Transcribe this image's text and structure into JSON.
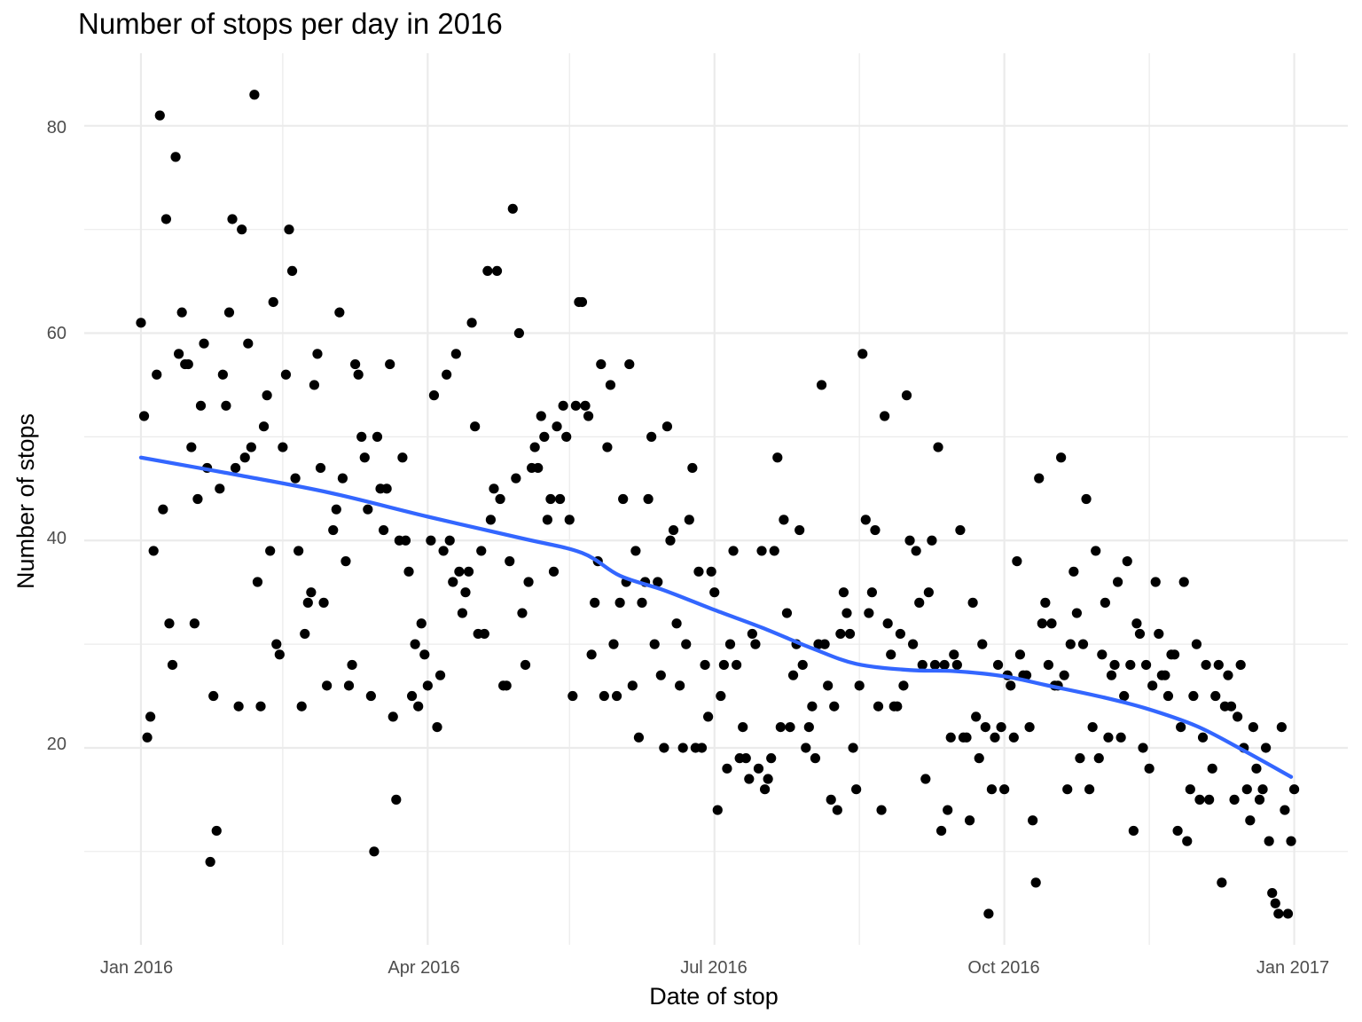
{
  "chart_data": {
    "type": "scatter",
    "title": "Number of stops per day in 2016",
    "xlabel": "Date of stop",
    "ylabel": "Number of stops",
    "x_ticks": [
      "Jan 2016",
      "Apr 2016",
      "Jul 2016",
      "Oct 2016",
      "Jan 2017"
    ],
    "y_ticks": [
      "20",
      "40",
      "60",
      "80"
    ],
    "x_range": [
      "2015-12-14",
      "2017-01-18"
    ],
    "ylim": [
      1,
      87
    ],
    "grid": true,
    "colors": {
      "points": "#000000",
      "smooth": "#3366FF",
      "grid": "#EBEBEB"
    },
    "points": [
      [
        "2016-01-01",
        61
      ],
      [
        "2016-01-02",
        52
      ],
      [
        "2016-01-03",
        21
      ],
      [
        "2016-01-04",
        23
      ],
      [
        "2016-01-05",
        39
      ],
      [
        "2016-01-06",
        56
      ],
      [
        "2016-01-07",
        81
      ],
      [
        "2016-01-08",
        43
      ],
      [
        "2016-01-09",
        71
      ],
      [
        "2016-01-10",
        32
      ],
      [
        "2016-01-11",
        28
      ],
      [
        "2016-01-12",
        77
      ],
      [
        "2016-01-13",
        58
      ],
      [
        "2016-01-14",
        62
      ],
      [
        "2016-01-15",
        57
      ],
      [
        "2016-01-16",
        57
      ],
      [
        "2016-01-17",
        49
      ],
      [
        "2016-01-18",
        32
      ],
      [
        "2016-01-19",
        44
      ],
      [
        "2016-01-20",
        53
      ],
      [
        "2016-01-21",
        59
      ],
      [
        "2016-01-22",
        47
      ],
      [
        "2016-01-23",
        9
      ],
      [
        "2016-01-24",
        25
      ],
      [
        "2016-01-25",
        12
      ],
      [
        "2016-01-26",
        45
      ],
      [
        "2016-01-27",
        56
      ],
      [
        "2016-01-28",
        53
      ],
      [
        "2016-01-29",
        62
      ],
      [
        "2016-01-30",
        71
      ],
      [
        "2016-01-31",
        47
      ],
      [
        "2016-02-01",
        24
      ],
      [
        "2016-02-02",
        70
      ],
      [
        "2016-02-03",
        48
      ],
      [
        "2016-02-04",
        59
      ],
      [
        "2016-02-05",
        49
      ],
      [
        "2016-02-06",
        83
      ],
      [
        "2016-02-07",
        36
      ],
      [
        "2016-02-08",
        24
      ],
      [
        "2016-02-09",
        51
      ],
      [
        "2016-02-10",
        54
      ],
      [
        "2016-02-11",
        39
      ],
      [
        "2016-02-12",
        63
      ],
      [
        "2016-02-13",
        30
      ],
      [
        "2016-02-14",
        29
      ],
      [
        "2016-02-15",
        49
      ],
      [
        "2016-02-16",
        56
      ],
      [
        "2016-02-17",
        70
      ],
      [
        "2016-02-18",
        66
      ],
      [
        "2016-02-19",
        46
      ],
      [
        "2016-02-20",
        39
      ],
      [
        "2016-02-21",
        24
      ],
      [
        "2016-02-22",
        31
      ],
      [
        "2016-02-23",
        34
      ],
      [
        "2016-02-24",
        35
      ],
      [
        "2016-02-25",
        55
      ],
      [
        "2016-02-26",
        58
      ],
      [
        "2016-02-27",
        47
      ],
      [
        "2016-02-28",
        34
      ],
      [
        "2016-02-29",
        26
      ],
      [
        "2016-03-02",
        41
      ],
      [
        "2016-03-03",
        43
      ],
      [
        "2016-03-04",
        62
      ],
      [
        "2016-03-05",
        46
      ],
      [
        "2016-03-06",
        38
      ],
      [
        "2016-03-07",
        26
      ],
      [
        "2016-03-08",
        28
      ],
      [
        "2016-03-09",
        57
      ],
      [
        "2016-03-10",
        56
      ],
      [
        "2016-03-11",
        50
      ],
      [
        "2016-03-12",
        48
      ],
      [
        "2016-03-13",
        43
      ],
      [
        "2016-03-14",
        25
      ],
      [
        "2016-03-15",
        10
      ],
      [
        "2016-03-16",
        50
      ],
      [
        "2016-03-17",
        45
      ],
      [
        "2016-03-18",
        41
      ],
      [
        "2016-03-19",
        45
      ],
      [
        "2016-03-20",
        57
      ],
      [
        "2016-03-21",
        23
      ],
      [
        "2016-03-22",
        15
      ],
      [
        "2016-03-23",
        40
      ],
      [
        "2016-03-24",
        48
      ],
      [
        "2016-03-25",
        40
      ],
      [
        "2016-03-26",
        37
      ],
      [
        "2016-03-27",
        25
      ],
      [
        "2016-03-28",
        30
      ],
      [
        "2016-03-29",
        24
      ],
      [
        "2016-03-30",
        32
      ],
      [
        "2016-03-31",
        29
      ],
      [
        "2016-04-01",
        26
      ],
      [
        "2016-04-02",
        40
      ],
      [
        "2016-04-03",
        54
      ],
      [
        "2016-04-04",
        22
      ],
      [
        "2016-04-05",
        27
      ],
      [
        "2016-04-06",
        39
      ],
      [
        "2016-04-07",
        56
      ],
      [
        "2016-04-08",
        40
      ],
      [
        "2016-04-09",
        36
      ],
      [
        "2016-04-10",
        58
      ],
      [
        "2016-04-11",
        37
      ],
      [
        "2016-04-12",
        33
      ],
      [
        "2016-04-13",
        35
      ],
      [
        "2016-04-14",
        37
      ],
      [
        "2016-04-15",
        61
      ],
      [
        "2016-04-16",
        51
      ],
      [
        "2016-04-17",
        31
      ],
      [
        "2016-04-18",
        39
      ],
      [
        "2016-04-19",
        31
      ],
      [
        "2016-04-20",
        66
      ],
      [
        "2016-04-21",
        42
      ],
      [
        "2016-04-22",
        45
      ],
      [
        "2016-04-23",
        66
      ],
      [
        "2016-04-24",
        44
      ],
      [
        "2016-04-25",
        26
      ],
      [
        "2016-04-26",
        26
      ],
      [
        "2016-04-27",
        38
      ],
      [
        "2016-04-28",
        72
      ],
      [
        "2016-04-29",
        46
      ],
      [
        "2016-04-30",
        60
      ],
      [
        "2016-05-01",
        33
      ],
      [
        "2016-05-02",
        28
      ],
      [
        "2016-05-03",
        36
      ],
      [
        "2016-05-04",
        47
      ],
      [
        "2016-05-05",
        49
      ],
      [
        "2016-05-06",
        47
      ],
      [
        "2016-05-07",
        52
      ],
      [
        "2016-05-08",
        50
      ],
      [
        "2016-05-09",
        42
      ],
      [
        "2016-05-10",
        44
      ],
      [
        "2016-05-11",
        37
      ],
      [
        "2016-05-12",
        51
      ],
      [
        "2016-05-13",
        44
      ],
      [
        "2016-05-14",
        53
      ],
      [
        "2016-05-15",
        50
      ],
      [
        "2016-05-16",
        42
      ],
      [
        "2016-05-17",
        25
      ],
      [
        "2016-05-18",
        53
      ],
      [
        "2016-05-19",
        63
      ],
      [
        "2016-05-20",
        63
      ],
      [
        "2016-05-21",
        53
      ],
      [
        "2016-05-22",
        52
      ],
      [
        "2016-05-23",
        29
      ],
      [
        "2016-05-24",
        34
      ],
      [
        "2016-05-25",
        38
      ],
      [
        "2016-05-26",
        57
      ],
      [
        "2016-05-27",
        25
      ],
      [
        "2016-05-28",
        49
      ],
      [
        "2016-05-29",
        55
      ],
      [
        "2016-05-30",
        30
      ],
      [
        "2016-05-31",
        25
      ],
      [
        "2016-06-01",
        34
      ],
      [
        "2016-06-02",
        44
      ],
      [
        "2016-06-03",
        36
      ],
      [
        "2016-06-04",
        57
      ],
      [
        "2016-06-05",
        26
      ],
      [
        "2016-06-06",
        39
      ],
      [
        "2016-06-07",
        21
      ],
      [
        "2016-06-08",
        34
      ],
      [
        "2016-06-09",
        36
      ],
      [
        "2016-06-10",
        44
      ],
      [
        "2016-06-11",
        50
      ],
      [
        "2016-06-12",
        30
      ],
      [
        "2016-06-13",
        36
      ],
      [
        "2016-06-14",
        27
      ],
      [
        "2016-06-15",
        20
      ],
      [
        "2016-06-16",
        51
      ],
      [
        "2016-06-17",
        40
      ],
      [
        "2016-06-18",
        41
      ],
      [
        "2016-06-19",
        32
      ],
      [
        "2016-06-20",
        26
      ],
      [
        "2016-06-21",
        20
      ],
      [
        "2016-06-22",
        30
      ],
      [
        "2016-06-23",
        42
      ],
      [
        "2016-06-24",
        47
      ],
      [
        "2016-06-25",
        20
      ],
      [
        "2016-06-26",
        37
      ],
      [
        "2016-06-27",
        20
      ],
      [
        "2016-06-28",
        28
      ],
      [
        "2016-06-29",
        23
      ],
      [
        "2016-06-30",
        37
      ],
      [
        "2016-07-01",
        35
      ],
      [
        "2016-07-02",
        14
      ],
      [
        "2016-07-03",
        25
      ],
      [
        "2016-07-04",
        28
      ],
      [
        "2016-07-05",
        18
      ],
      [
        "2016-07-06",
        30
      ],
      [
        "2016-07-07",
        39
      ],
      [
        "2016-07-08",
        28
      ],
      [
        "2016-07-09",
        19
      ],
      [
        "2016-07-10",
        22
      ],
      [
        "2016-07-11",
        19
      ],
      [
        "2016-07-12",
        17
      ],
      [
        "2016-07-13",
        31
      ],
      [
        "2016-07-14",
        30
      ],
      [
        "2016-07-15",
        18
      ],
      [
        "2016-07-16",
        39
      ],
      [
        "2016-07-17",
        16
      ],
      [
        "2016-07-18",
        17
      ],
      [
        "2016-07-19",
        19
      ],
      [
        "2016-07-20",
        39
      ],
      [
        "2016-07-21",
        48
      ],
      [
        "2016-07-22",
        22
      ],
      [
        "2016-07-23",
        42
      ],
      [
        "2016-07-24",
        33
      ],
      [
        "2016-07-25",
        22
      ],
      [
        "2016-07-26",
        27
      ],
      [
        "2016-07-27",
        30
      ],
      [
        "2016-07-28",
        41
      ],
      [
        "2016-07-29",
        28
      ],
      [
        "2016-07-30",
        20
      ],
      [
        "2016-07-31",
        22
      ],
      [
        "2016-08-01",
        24
      ],
      [
        "2016-08-02",
        19
      ],
      [
        "2016-08-03",
        30
      ],
      [
        "2016-08-04",
        55
      ],
      [
        "2016-08-05",
        30
      ],
      [
        "2016-08-06",
        26
      ],
      [
        "2016-08-07",
        15
      ],
      [
        "2016-08-08",
        24
      ],
      [
        "2016-08-09",
        14
      ],
      [
        "2016-08-10",
        31
      ],
      [
        "2016-08-11",
        35
      ],
      [
        "2016-08-12",
        33
      ],
      [
        "2016-08-13",
        31
      ],
      [
        "2016-08-14",
        20
      ],
      [
        "2016-08-15",
        16
      ],
      [
        "2016-08-16",
        26
      ],
      [
        "2016-08-17",
        58
      ],
      [
        "2016-08-18",
        42
      ],
      [
        "2016-08-19",
        33
      ],
      [
        "2016-08-20",
        35
      ],
      [
        "2016-08-21",
        41
      ],
      [
        "2016-08-22",
        24
      ],
      [
        "2016-08-23",
        14
      ],
      [
        "2016-08-24",
        52
      ],
      [
        "2016-08-25",
        32
      ],
      [
        "2016-08-26",
        29
      ],
      [
        "2016-08-27",
        24
      ],
      [
        "2016-08-28",
        24
      ],
      [
        "2016-08-29",
        31
      ],
      [
        "2016-08-30",
        26
      ],
      [
        "2016-08-31",
        54
      ],
      [
        "2016-09-01",
        40
      ],
      [
        "2016-09-02",
        30
      ],
      [
        "2016-09-03",
        39
      ],
      [
        "2016-09-04",
        34
      ],
      [
        "2016-09-05",
        28
      ],
      [
        "2016-09-06",
        17
      ],
      [
        "2016-09-07",
        35
      ],
      [
        "2016-09-08",
        40
      ],
      [
        "2016-09-09",
        28
      ],
      [
        "2016-09-10",
        49
      ],
      [
        "2016-09-11",
        12
      ],
      [
        "2016-09-12",
        28
      ],
      [
        "2016-09-13",
        14
      ],
      [
        "2016-09-14",
        21
      ],
      [
        "2016-09-15",
        29
      ],
      [
        "2016-09-16",
        28
      ],
      [
        "2016-09-17",
        41
      ],
      [
        "2016-09-18",
        21
      ],
      [
        "2016-09-19",
        21
      ],
      [
        "2016-09-20",
        13
      ],
      [
        "2016-09-21",
        34
      ],
      [
        "2016-09-22",
        23
      ],
      [
        "2016-09-23",
        19
      ],
      [
        "2016-09-24",
        30
      ],
      [
        "2016-09-25",
        22
      ],
      [
        "2016-09-26",
        4
      ],
      [
        "2016-09-27",
        16
      ],
      [
        "2016-09-28",
        21
      ],
      [
        "2016-09-29",
        28
      ],
      [
        "2016-09-30",
        22
      ],
      [
        "2016-10-01",
        16
      ],
      [
        "2016-10-02",
        27
      ],
      [
        "2016-10-03",
        26
      ],
      [
        "2016-10-04",
        21
      ],
      [
        "2016-10-05",
        38
      ],
      [
        "2016-10-06",
        29
      ],
      [
        "2016-10-07",
        27
      ],
      [
        "2016-10-08",
        27
      ],
      [
        "2016-10-09",
        22
      ],
      [
        "2016-10-10",
        13
      ],
      [
        "2016-10-11",
        7
      ],
      [
        "2016-10-12",
        46
      ],
      [
        "2016-10-13",
        32
      ],
      [
        "2016-10-14",
        34
      ],
      [
        "2016-10-15",
        28
      ],
      [
        "2016-10-16",
        32
      ],
      [
        "2016-10-17",
        26
      ],
      [
        "2016-10-18",
        26
      ],
      [
        "2016-10-19",
        48
      ],
      [
        "2016-10-20",
        27
      ],
      [
        "2016-10-21",
        16
      ],
      [
        "2016-10-22",
        30
      ],
      [
        "2016-10-23",
        37
      ],
      [
        "2016-10-24",
        33
      ],
      [
        "2016-10-25",
        19
      ],
      [
        "2016-10-26",
        30
      ],
      [
        "2016-10-27",
        44
      ],
      [
        "2016-10-28",
        16
      ],
      [
        "2016-10-29",
        22
      ],
      [
        "2016-10-30",
        39
      ],
      [
        "2016-10-31",
        19
      ],
      [
        "2016-11-01",
        29
      ],
      [
        "2016-11-02",
        34
      ],
      [
        "2016-11-03",
        21
      ],
      [
        "2016-11-04",
        27
      ],
      [
        "2016-11-05",
        28
      ],
      [
        "2016-11-06",
        36
      ],
      [
        "2016-11-07",
        21
      ],
      [
        "2016-11-08",
        25
      ],
      [
        "2016-11-09",
        38
      ],
      [
        "2016-11-10",
        28
      ],
      [
        "2016-11-11",
        12
      ],
      [
        "2016-11-12",
        32
      ],
      [
        "2016-11-13",
        31
      ],
      [
        "2016-11-14",
        20
      ],
      [
        "2016-11-15",
        28
      ],
      [
        "2016-11-16",
        18
      ],
      [
        "2016-11-17",
        26
      ],
      [
        "2016-11-18",
        36
      ],
      [
        "2016-11-19",
        31
      ],
      [
        "2016-11-20",
        27
      ],
      [
        "2016-11-21",
        27
      ],
      [
        "2016-11-22",
        25
      ],
      [
        "2016-11-23",
        29
      ],
      [
        "2016-11-24",
        29
      ],
      [
        "2016-11-25",
        12
      ],
      [
        "2016-11-26",
        22
      ],
      [
        "2016-11-27",
        36
      ],
      [
        "2016-11-28",
        11
      ],
      [
        "2016-11-29",
        16
      ],
      [
        "2016-11-30",
        25
      ],
      [
        "2016-12-01",
        30
      ],
      [
        "2016-12-02",
        15
      ],
      [
        "2016-12-03",
        21
      ],
      [
        "2016-12-04",
        28
      ],
      [
        "2016-12-05",
        15
      ],
      [
        "2016-12-06",
        18
      ],
      [
        "2016-12-07",
        25
      ],
      [
        "2016-12-08",
        28
      ],
      [
        "2016-12-09",
        7
      ],
      [
        "2016-12-10",
        24
      ],
      [
        "2016-12-11",
        27
      ],
      [
        "2016-12-12",
        24
      ],
      [
        "2016-12-13",
        15
      ],
      [
        "2016-12-14",
        23
      ],
      [
        "2016-12-15",
        28
      ],
      [
        "2016-12-16",
        20
      ],
      [
        "2016-12-17",
        16
      ],
      [
        "2016-12-18",
        13
      ],
      [
        "2016-12-19",
        22
      ],
      [
        "2016-12-20",
        18
      ],
      [
        "2016-12-21",
        15
      ],
      [
        "2016-12-22",
        16
      ],
      [
        "2016-12-23",
        20
      ],
      [
        "2016-12-24",
        11
      ],
      [
        "2016-12-25",
        6
      ],
      [
        "2016-12-26",
        5
      ],
      [
        "2016-12-27",
        4
      ],
      [
        "2016-12-28",
        22
      ],
      [
        "2016-12-29",
        14
      ],
      [
        "2016-12-30",
        4
      ],
      [
        "2016-12-31",
        11
      ],
      [
        "2017-01-01",
        16
      ]
    ],
    "smooth": [
      [
        "2016-01-01",
        48
      ],
      [
        "2016-02-01",
        46.3
      ],
      [
        "2016-03-01",
        44.6
      ],
      [
        "2016-04-01",
        42.3
      ],
      [
        "2016-05-01",
        40.2
      ],
      [
        "2016-05-20",
        38.8
      ],
      [
        "2016-06-01",
        36.6
      ],
      [
        "2016-06-15",
        35.2
      ],
      [
        "2016-07-01",
        33.3
      ],
      [
        "2016-07-16",
        31.6
      ],
      [
        "2016-08-01",
        29.6
      ],
      [
        "2016-08-15",
        28.1
      ],
      [
        "2016-09-01",
        27.5
      ],
      [
        "2016-09-15",
        27.4
      ],
      [
        "2016-10-01",
        26.9
      ],
      [
        "2016-10-15",
        26
      ],
      [
        "2016-11-01",
        24.9
      ],
      [
        "2016-11-15",
        23.8
      ],
      [
        "2016-12-01",
        22.1
      ],
      [
        "2016-12-15",
        19.9
      ],
      [
        "2016-12-31",
        17.2
      ]
    ]
  }
}
